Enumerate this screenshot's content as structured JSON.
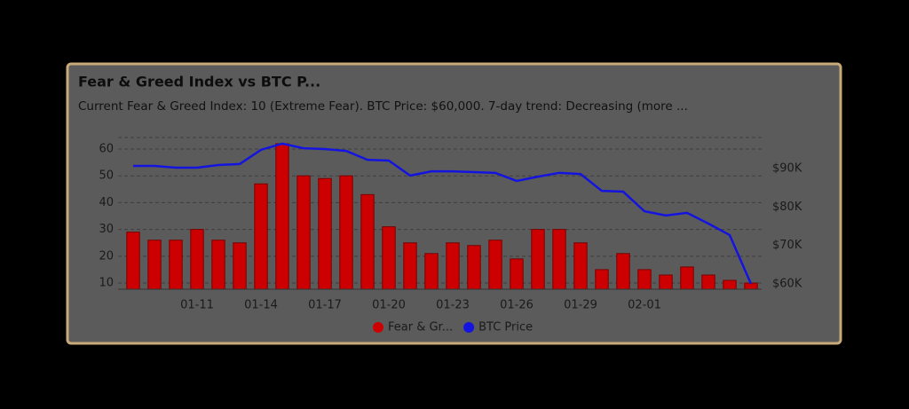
{
  "chart_data": {
    "type": "bar_line",
    "title": "Fear & Greed Index vs BTC P...",
    "subtitle": "Current Fear & Greed Index: 10 (Extreme Fear). BTC Price: $60,000. 7-day trend: Decreasing (more ...",
    "categories": [
      null,
      null,
      null,
      "01-11",
      null,
      null,
      "01-14",
      null,
      null,
      "01-17",
      null,
      null,
      "01-20",
      null,
      null,
      "01-23",
      null,
      null,
      "01-26",
      null,
      null,
      "01-29",
      null,
      null,
      "02-01",
      null,
      null,
      null,
      null,
      null
    ],
    "series": [
      {
        "name": "Fear & Gr...",
        "color": "#cc0000",
        "values": [
          29,
          26,
          26,
          30,
          26,
          25,
          47,
          62,
          50,
          49,
          50,
          43,
          31,
          25,
          21,
          25,
          24,
          26,
          19,
          30,
          30,
          25,
          15,
          21,
          15,
          13,
          16,
          13,
          11,
          10
        ]
      },
      {
        "name": "BTC Price",
        "color": "#1414e0",
        "axis": "y2",
        "values": [
          90700,
          90700,
          90250,
          90250,
          90950,
          91200,
          94900,
          96500,
          95300,
          95100,
          94600,
          92300,
          92100,
          88200,
          89300,
          89300,
          89100,
          88900,
          86800,
          87900,
          88900,
          88600,
          84200,
          84000,
          78900,
          77800,
          78500,
          75700,
          72700,
          60000
        ]
      }
    ],
    "ylim": [
      7.7,
      64.3
    ],
    "yticks": [
      10,
      20,
      30,
      40,
      50,
      60
    ],
    "y2lim": [
      58600,
      98100
    ],
    "y2ticks": [
      {
        "value": 60000,
        "label": "$60K"
      },
      {
        "value": 70000,
        "label": "$70K"
      },
      {
        "value": 80000,
        "label": "$80K"
      },
      {
        "value": 90000,
        "label": "$90K"
      }
    ],
    "grid": true,
    "legend": "bottom"
  }
}
